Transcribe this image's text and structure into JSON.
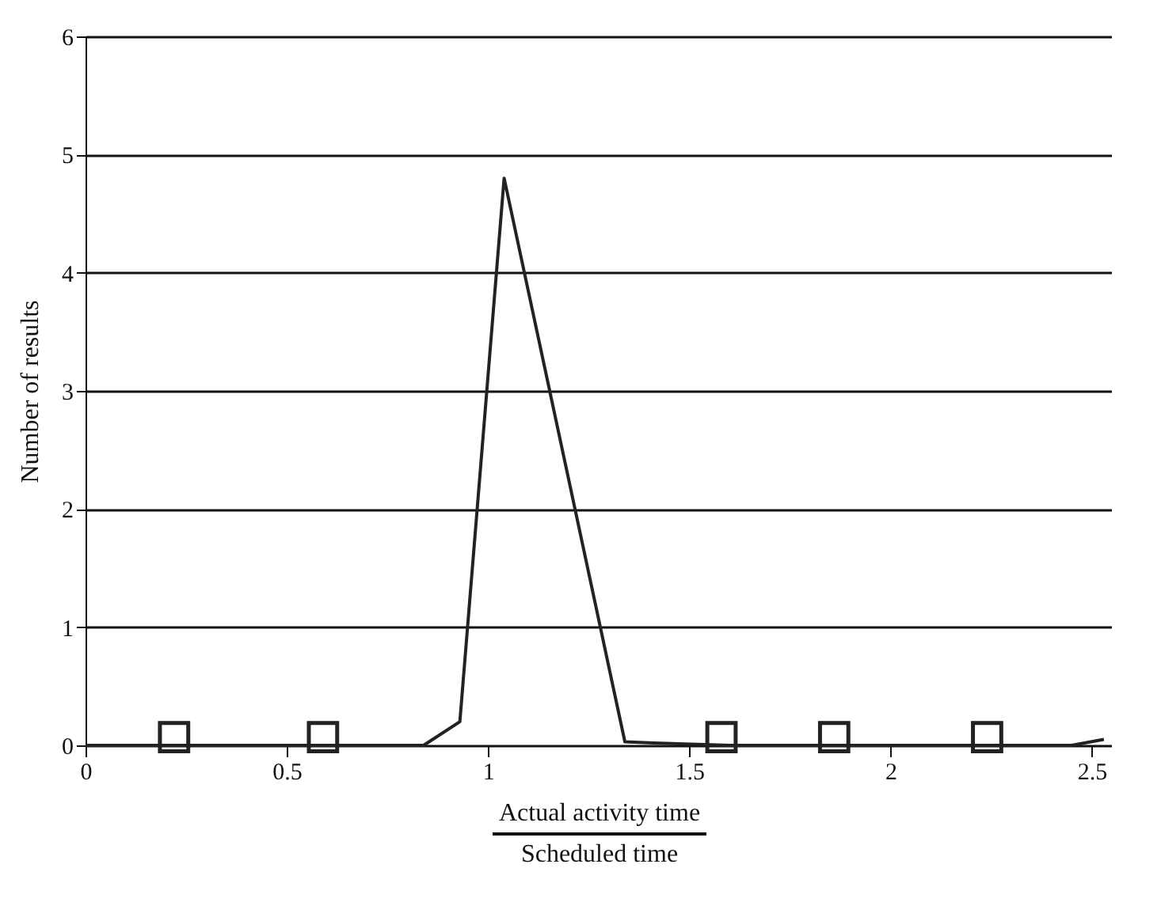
{
  "chart_data": {
    "type": "line",
    "xlabel": "Actual activity time\nScheduled time",
    "ylabel": "Number of results",
    "xlim": [
      0,
      2.55
    ],
    "xticks": [
      0,
      0.5,
      1,
      1.5,
      2,
      2.5
    ],
    "ylim": [
      0,
      6
    ],
    "yticks": [
      0,
      1,
      2,
      3,
      4,
      5,
      6
    ],
    "grid": "y",
    "series": [
      {
        "color": "#222222",
        "marker": "none",
        "line_style": "solid",
        "x": [
          0,
          0.84,
          0.93,
          1.04,
          1.34,
          1.41,
          1.6,
          2.45,
          2.53
        ],
        "values": [
          0,
          0,
          0.2,
          4.8,
          0.03,
          0.02,
          0,
          0,
          0.05
        ]
      },
      {
        "type": "scatter",
        "color": "#222222",
        "marker": "square",
        "x": [
          0.22,
          0.59,
          1.58,
          1.86,
          2.24
        ],
        "values": [
          0.07,
          0.07,
          0.07,
          0.07,
          0.07
        ]
      }
    ]
  }
}
